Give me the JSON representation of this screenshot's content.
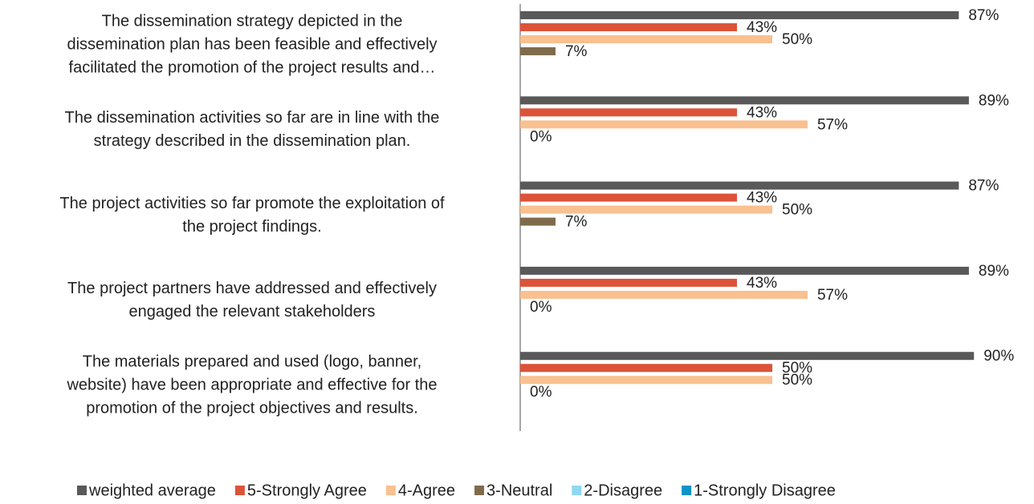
{
  "chart_data": {
    "type": "bar",
    "orientation": "horizontal",
    "categories": [
      "The dissemination strategy depicted in the\ndissemination plan has been feasible and effectively\nfacilitated the promotion of the project results and…",
      "The dissemination activities so far are in line with the\nstrategy described in the dissemination plan.",
      "The project activities so far promote the exploitation of\nthe project findings.",
      "The project partners have addressed and effectively\nengaged the relevant stakeholders",
      "The materials prepared and used (logo, banner,\nwebsite) have been appropriate and effective for the\npromotion of the project objectives and results."
    ],
    "series": [
      {
        "name": "weighted average",
        "color": "#595959",
        "values": [
          87,
          89,
          87,
          89,
          90
        ],
        "value_labels": [
          "87%",
          "89%",
          "87%",
          "89%",
          "90%"
        ]
      },
      {
        "name": "5-Strongly Agree",
        "color": "#dc5339",
        "values": [
          43,
          43,
          43,
          43,
          50
        ],
        "value_labels": [
          "43%",
          "43%",
          "43%",
          "43%",
          "50%"
        ]
      },
      {
        "name": "4-Agree",
        "color": "#f9c090",
        "values": [
          50,
          57,
          50,
          57,
          50
        ],
        "value_labels": [
          "50%",
          "57%",
          "50%",
          "57%",
          "50%"
        ]
      },
      {
        "name": "3-Neutral",
        "color": "#7f6b4c",
        "values": [
          7,
          0,
          7,
          0,
          0
        ],
        "value_labels": [
          "7%",
          "0%",
          "7%",
          "0%",
          "0%"
        ]
      },
      {
        "name": "2-Disagree",
        "color": "#8fd8f2",
        "values": [
          null,
          null,
          null,
          null,
          null
        ]
      },
      {
        "name": "1-Strongly Disagree",
        "color": "#0e93c8",
        "values": [
          null,
          null,
          null,
          null,
          null
        ]
      }
    ],
    "xlim": [
      0,
      100
    ],
    "legend": "bottom"
  }
}
